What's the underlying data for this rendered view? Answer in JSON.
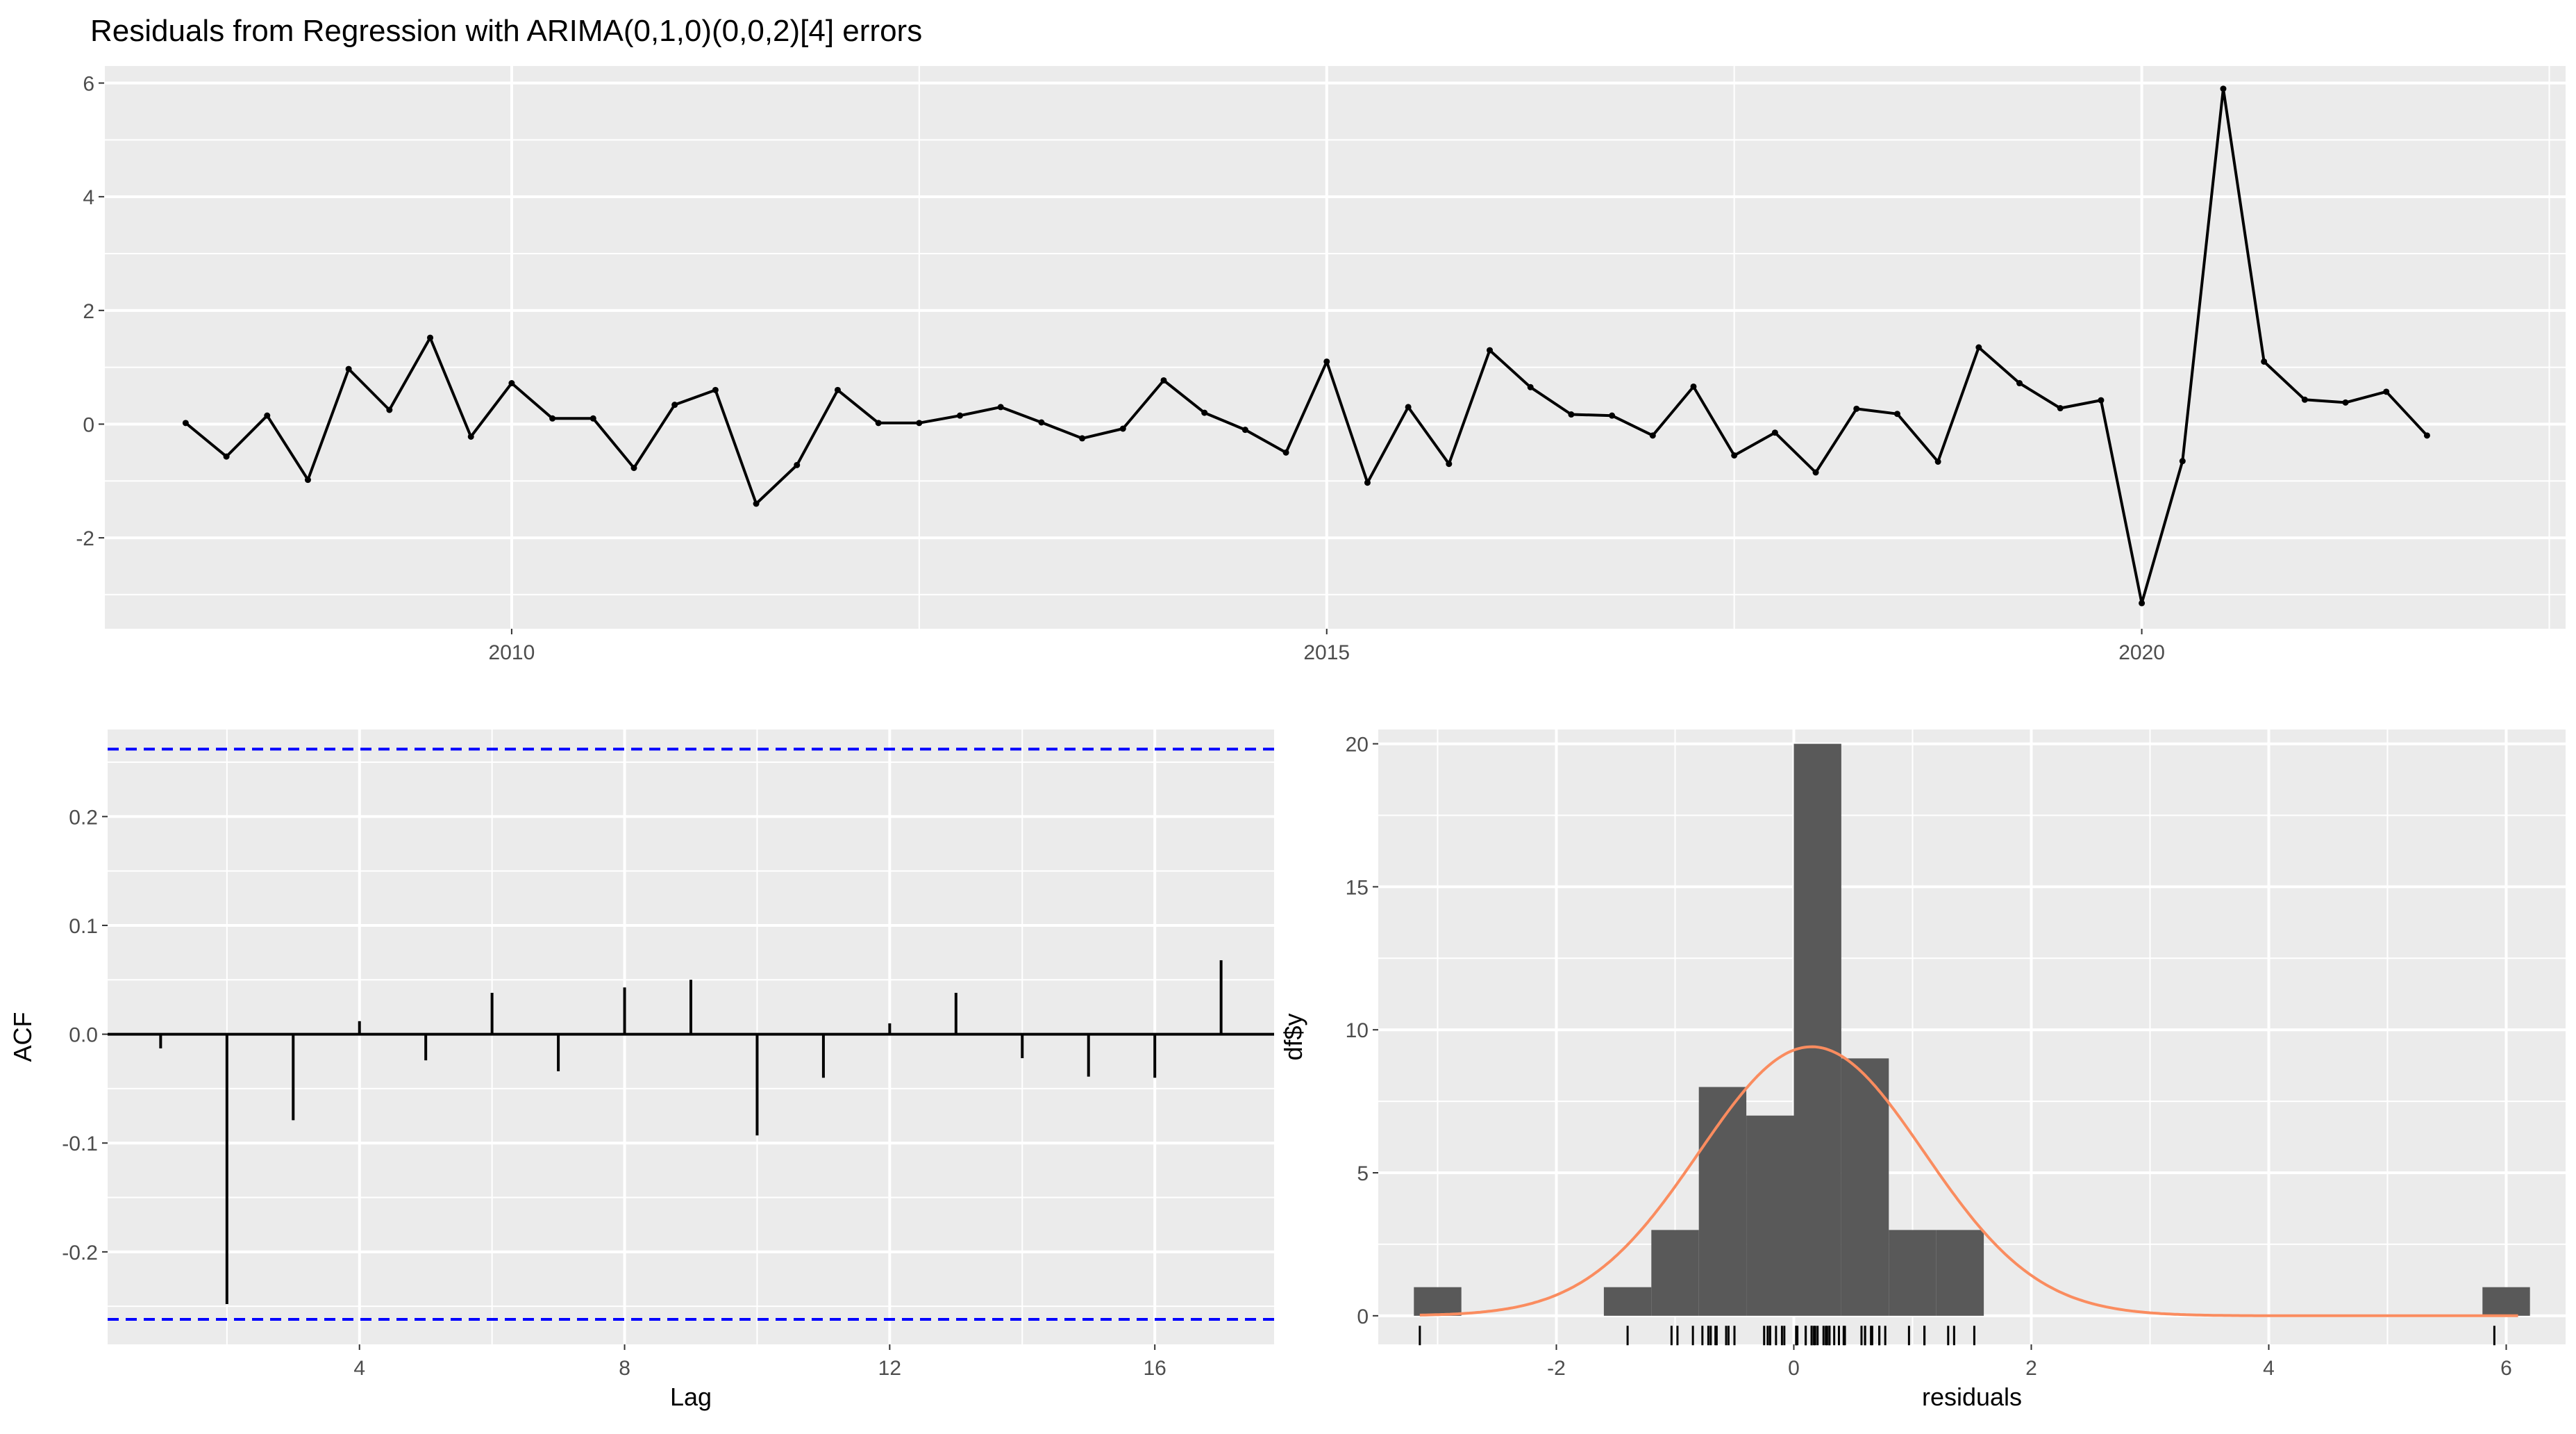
{
  "title": "Residuals from Regression with ARIMA(0,1,0)(0,0,2)[4] errors",
  "colors": {
    "panel": "#ebebeb",
    "grid": "#ffffff",
    "line": "#000000",
    "ci": "#0000ff",
    "bar": "#595959",
    "density": "#fa8c5f",
    "tick": "#4d4d4d"
  },
  "chart_data": [
    {
      "type": "line",
      "title": "Residuals from Regression with ARIMA(0,1,0)(0,0,2)[4] errors",
      "xlabel": "",
      "ylabel": "",
      "xlim": [
        2007.5,
        2022.6
      ],
      "ylim": [
        -3.6,
        6.3
      ],
      "x_ticks": [
        "2010",
        "2015",
        "2020"
      ],
      "y_ticks": [
        "-2",
        "0",
        "2",
        "4",
        "6"
      ],
      "grid": true,
      "x": [
        2008.0,
        2008.25,
        2008.5,
        2008.75,
        2009.0,
        2009.25,
        2009.5,
        2009.75,
        2010.0,
        2010.25,
        2010.5,
        2010.75,
        2011.0,
        2011.25,
        2011.5,
        2011.75,
        2012.0,
        2012.25,
        2012.5,
        2012.75,
        2013.0,
        2013.25,
        2013.5,
        2013.75,
        2014.0,
        2014.25,
        2014.5,
        2014.75,
        2015.0,
        2015.25,
        2015.5,
        2015.75,
        2016.0,
        2016.25,
        2016.5,
        2016.75,
        2017.0,
        2017.25,
        2017.5,
        2017.75,
        2018.0,
        2018.25,
        2018.5,
        2018.75,
        2019.0,
        2019.25,
        2019.5,
        2019.75,
        2020.0,
        2020.25,
        2020.5,
        2020.75,
        2021.0,
        2021.25,
        2021.5,
        2021.75
      ],
      "y": [
        0.02,
        -0.57,
        0.15,
        -0.98,
        0.97,
        0.25,
        1.52,
        -0.22,
        0.72,
        0.1,
        0.1,
        -0.77,
        0.34,
        0.6,
        -1.4,
        -0.72,
        0.6,
        0.02,
        0.02,
        0.15,
        0.3,
        0.03,
        -0.25,
        -0.08,
        0.77,
        0.2,
        -0.1,
        -0.5,
        1.1,
        -1.03,
        0.3,
        -0.7,
        1.3,
        0.65,
        0.17,
        0.15,
        -0.2,
        0.66,
        -0.55,
        -0.15,
        -0.85,
        0.27,
        0.18,
        -0.66,
        1.35,
        0.72,
        0.28,
        0.42,
        -3.15,
        -0.65,
        5.9,
        1.1,
        0.43,
        0.38,
        0.57,
        -0.2
      ]
    },
    {
      "type": "bar",
      "xlabel": "Lag",
      "ylabel": "ACF",
      "xlim": [
        0.2,
        17.8
      ],
      "ylim": [
        -0.285,
        0.28
      ],
      "x_ticks": [
        "4",
        "8",
        "12",
        "16"
      ],
      "y_ticks": [
        "-0.2",
        "-0.1",
        "0.0",
        "0.1",
        "0.2"
      ],
      "grid": true,
      "lags": [
        1,
        2,
        3,
        4,
        5,
        6,
        7,
        8,
        9,
        10,
        11,
        12,
        13,
        14,
        15,
        16,
        17
      ],
      "values": [
        -0.013,
        -0.248,
        -0.079,
        0.012,
        -0.024,
        0.038,
        -0.034,
        0.043,
        0.05,
        -0.093,
        -0.04,
        0.01,
        0.038,
        -0.022,
        -0.039,
        -0.04,
        0.068
      ],
      "ci_bounds": [
        0.262,
        -0.262
      ]
    },
    {
      "type": "bar",
      "xlabel": "residuals",
      "ylabel": "df$y",
      "xlim": [
        -3.5,
        6.5
      ],
      "ylim": [
        -1.0,
        20.5
      ],
      "x_ticks": [
        "-2",
        "0",
        "2",
        "4",
        "6"
      ],
      "y_ticks": [
        "0",
        "5",
        "10",
        "15",
        "20"
      ],
      "grid": true,
      "bins": [
        {
          "x0": -3.2,
          "x1": -2.8,
          "count": 1
        },
        {
          "x0": -1.6,
          "x1": -1.2,
          "count": 1
        },
        {
          "x0": -1.2,
          "x1": -0.8,
          "count": 3
        },
        {
          "x0": -0.8,
          "x1": -0.4,
          "count": 8
        },
        {
          "x0": -0.4,
          "x1": 0.0,
          "count": 7
        },
        {
          "x0": 0.0,
          "x1": 0.4,
          "count": 20
        },
        {
          "x0": 0.4,
          "x1": 0.8,
          "count": 9
        },
        {
          "x0": 0.8,
          "x1": 1.2,
          "count": 3
        },
        {
          "x0": 1.2,
          "x1": 1.6,
          "count": 3
        },
        {
          "x0": 5.8,
          "x1": 6.2,
          "count": 1
        }
      ],
      "density": {
        "mean": 0.15,
        "sd": 0.95,
        "n": 56,
        "binwidth": 0.4
      },
      "rug": [
        -3.15,
        -1.4,
        -1.03,
        -0.98,
        -0.85,
        -0.77,
        -0.72,
        -0.7,
        -0.66,
        -0.65,
        -0.57,
        -0.55,
        -0.5,
        -0.25,
        -0.22,
        -0.2,
        -0.2,
        -0.15,
        -0.1,
        -0.08,
        0.02,
        0.02,
        0.02,
        0.03,
        0.1,
        0.1,
        0.15,
        0.15,
        0.17,
        0.18,
        0.2,
        0.25,
        0.27,
        0.28,
        0.3,
        0.3,
        0.34,
        0.38,
        0.42,
        0.43,
        0.57,
        0.6,
        0.6,
        0.65,
        0.66,
        0.72,
        0.72,
        0.77,
        0.97,
        1.1,
        1.1,
        1.3,
        1.35,
        1.52,
        5.9
      ]
    }
  ]
}
